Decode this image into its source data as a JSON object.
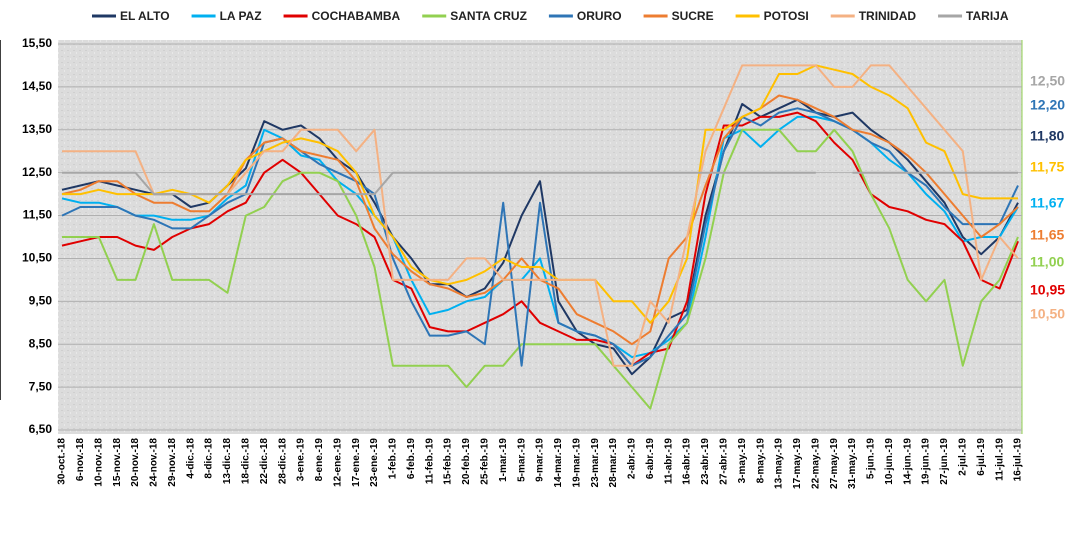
{
  "chart_data": {
    "type": "line",
    "categories": [
      "30-oct.-18",
      "6-nov.-18",
      "10-nov.-18",
      "15-nov.-18",
      "20-nov.-18",
      "24-nov.-18",
      "29-nov.-18",
      "4-dic.-18",
      "8-dic.-18",
      "13-dic.-18",
      "18-dic.-18",
      "22-dic.-18",
      "28-dic.-18",
      "3-ene.-19",
      "8-ene.-19",
      "12-ene.-19",
      "17-ene.-19",
      "23-ene.-19",
      "1-feb.-19",
      "6-feb.-19",
      "11-feb.-19",
      "15-feb.-19",
      "20-feb.-19",
      "25-feb.-19",
      "1-mar.-19",
      "5-mar.-19",
      "9-mar.-19",
      "14-mar.-19",
      "19-mar.-19",
      "23-mar.-19",
      "28-mar.-19",
      "2-abr.-19",
      "6-abr.-19",
      "11-abr.-19",
      "16-abr.-19",
      "23-abr.-19",
      "27-abr.-19",
      "3-may.-19",
      "8-may.-19",
      "13-may.-19",
      "17-may.-19",
      "22-may.-19",
      "27-may.-19",
      "31-may.-19",
      "5-jun.-19",
      "10-jun.-19",
      "14-jun.-19",
      "19-jun.-19",
      "27-jun.-19",
      "2-jul.-19",
      "6-jul.-19",
      "11-jul.-19",
      "16-jul.-19"
    ],
    "ylim": [
      6.5,
      15.5
    ],
    "yticks": [
      {
        "value": 6.5,
        "label": "6,50"
      },
      {
        "value": 7.5,
        "label": "7,50"
      },
      {
        "value": 8.5,
        "label": "8,50"
      },
      {
        "value": 9.5,
        "label": "9,50"
      },
      {
        "value": 10.5,
        "label": "10,50"
      },
      {
        "value": 11.5,
        "label": "11,50"
      },
      {
        "value": 12.5,
        "label": "12,50"
      },
      {
        "value": 13.5,
        "label": "13,50"
      },
      {
        "value": 14.5,
        "label": "14,50"
      },
      {
        "value": 15.5,
        "label": "15,50"
      }
    ],
    "grid": true,
    "series": [
      {
        "name": "EL ALTO",
        "color": "#1f3864",
        "end_label": "11,80",
        "values": [
          12.1,
          12.2,
          12.3,
          12.2,
          12.1,
          12.0,
          12.0,
          11.7,
          11.8,
          12.2,
          12.6,
          13.7,
          13.5,
          13.6,
          13.3,
          12.8,
          12.5,
          11.8,
          11.0,
          10.5,
          9.9,
          9.9,
          9.6,
          9.8,
          10.4,
          11.5,
          12.3,
          9.5,
          8.8,
          8.5,
          8.4,
          7.8,
          8.2,
          9.1,
          9.3,
          11.5,
          13.0,
          14.1,
          13.8,
          14.0,
          14.2,
          13.9,
          13.8,
          13.9,
          13.5,
          13.2,
          12.8,
          12.3,
          11.8,
          11.0,
          10.6,
          11.0,
          11.8
        ]
      },
      {
        "name": "LA PAZ",
        "color": "#00b0f0",
        "end_label": "11,67",
        "values": [
          11.9,
          11.8,
          11.8,
          11.7,
          11.5,
          11.5,
          11.4,
          11.4,
          11.5,
          11.9,
          12.2,
          13.5,
          13.3,
          12.9,
          12.8,
          12.3,
          12.0,
          11.5,
          11.0,
          10.0,
          9.2,
          9.3,
          9.5,
          9.6,
          10.0,
          10.0,
          10.5,
          9.0,
          8.8,
          8.7,
          8.5,
          8.2,
          8.3,
          8.6,
          9.0,
          11.0,
          13.3,
          13.5,
          13.1,
          13.5,
          13.8,
          13.8,
          13.7,
          13.5,
          13.2,
          12.8,
          12.5,
          12.0,
          11.6,
          10.9,
          11.0,
          11.0,
          11.7
        ]
      },
      {
        "name": "COCHABAMBA",
        "color": "#e00000",
        "end_label": "10,95",
        "values": [
          10.8,
          10.9,
          11.0,
          11.0,
          10.8,
          10.7,
          11.0,
          11.2,
          11.3,
          11.6,
          11.8,
          12.5,
          12.8,
          12.5,
          12.0,
          11.5,
          11.3,
          11.0,
          10.0,
          9.8,
          8.9,
          8.8,
          8.8,
          9.0,
          9.2,
          9.5,
          9.0,
          8.8,
          8.6,
          8.6,
          8.5,
          8.0,
          8.3,
          8.4,
          9.5,
          12.0,
          13.6,
          13.6,
          13.8,
          13.8,
          13.9,
          13.7,
          13.2,
          12.8,
          12.0,
          11.7,
          11.6,
          11.4,
          11.3,
          10.9,
          10.0,
          9.8,
          10.9
        ]
      },
      {
        "name": "SANTA CRUZ",
        "color": "#92d050",
        "end_label": "11,00",
        "values": [
          11.0,
          11.0,
          11.0,
          10.0,
          10.0,
          11.3,
          10.0,
          10.0,
          10.0,
          9.7,
          11.5,
          11.7,
          12.3,
          12.5,
          12.5,
          12.3,
          11.5,
          10.3,
          8.0,
          8.0,
          8.0,
          8.0,
          7.5,
          8.0,
          8.0,
          8.5,
          8.5,
          8.5,
          8.5,
          8.5,
          8.0,
          7.5,
          7.0,
          8.5,
          9.0,
          10.5,
          12.5,
          13.5,
          13.5,
          13.5,
          13.0,
          13.0,
          13.5,
          13.0,
          12.0,
          11.2,
          10.0,
          9.5,
          10.0,
          8.0,
          9.5,
          10.0,
          11.0
        ]
      },
      {
        "name": "ORURO",
        "color": "#2e75b6",
        "end_label": "12,20",
        "values": [
          11.5,
          11.7,
          11.7,
          11.7,
          11.5,
          11.4,
          11.2,
          11.2,
          11.5,
          11.8,
          12.0,
          13.2,
          13.3,
          13.0,
          12.7,
          12.5,
          12.3,
          12.0,
          10.5,
          9.5,
          8.7,
          8.7,
          8.8,
          8.5,
          11.8,
          8.0,
          11.8,
          9.0,
          8.8,
          8.7,
          8.5,
          8.0,
          8.2,
          8.7,
          9.2,
          11.3,
          13.0,
          13.8,
          13.6,
          13.9,
          14.0,
          13.9,
          13.7,
          13.5,
          13.2,
          13.0,
          12.5,
          12.2,
          11.7,
          11.3,
          11.3,
          11.3,
          12.2
        ]
      },
      {
        "name": "SUCRE",
        "color": "#ed7d31",
        "end_label": "11,65",
        "values": [
          12.0,
          12.1,
          12.3,
          12.3,
          12.0,
          11.8,
          11.8,
          11.6,
          11.6,
          12.0,
          12.8,
          13.2,
          13.3,
          13.0,
          12.9,
          12.8,
          12.3,
          11.2,
          10.6,
          10.2,
          9.9,
          9.8,
          9.6,
          9.7,
          10.0,
          10.5,
          10.0,
          9.8,
          9.2,
          9.0,
          8.8,
          8.5,
          8.8,
          10.5,
          11.0,
          12.2,
          13.3,
          13.8,
          14.0,
          14.3,
          14.2,
          14.0,
          13.8,
          13.5,
          13.4,
          13.2,
          12.9,
          12.5,
          12.0,
          11.5,
          11.0,
          11.3,
          11.7
        ]
      },
      {
        "name": "POTOSI",
        "color": "#ffc000",
        "end_label": "11,75",
        "values": [
          12.0,
          12.0,
          12.1,
          12.0,
          12.0,
          12.0,
          12.1,
          12.0,
          11.8,
          12.2,
          12.8,
          13.0,
          13.2,
          13.3,
          13.2,
          13.0,
          12.5,
          11.5,
          11.0,
          10.3,
          10.0,
          9.9,
          10.0,
          10.2,
          10.5,
          10.3,
          10.3,
          10.0,
          10.0,
          10.0,
          9.5,
          9.5,
          9.0,
          9.5,
          10.5,
          13.5,
          13.5,
          13.8,
          14.0,
          14.8,
          14.8,
          15.0,
          14.9,
          14.8,
          14.5,
          14.3,
          14.0,
          13.2,
          13.0,
          12.0,
          11.9,
          11.9,
          11.9
        ]
      },
      {
        "name": "TRINIDAD",
        "color": "#f4b183",
        "end_label": "10,50",
        "values": [
          13.0,
          13.0,
          13.0,
          13.0,
          13.0,
          12.0,
          12.0,
          12.0,
          12.0,
          12.0,
          12.5,
          13.0,
          13.0,
          13.5,
          13.5,
          13.5,
          13.0,
          13.5,
          10.0,
          10.0,
          10.0,
          10.0,
          10.5,
          10.5,
          10.0,
          10.0,
          10.0,
          10.0,
          10.0,
          10.0,
          8.0,
          8.0,
          9.5,
          9.0,
          11.0,
          13.0,
          14.0,
          15.0,
          15.0,
          15.0,
          15.0,
          15.0,
          14.5,
          14.5,
          15.0,
          15.0,
          14.5,
          14.0,
          13.5,
          13.0,
          10.0,
          11.0,
          10.5
        ]
      },
      {
        "name": "TARIJA",
        "color": "#a6a6a6",
        "end_label": "12,50",
        "values": [
          12.5,
          12.5,
          12.5,
          12.5,
          12.5,
          12.0,
          12.0,
          12.0,
          12.0,
          12.0,
          12.0,
          12.0,
          12.0,
          12.0,
          12.0,
          12.0,
          12.0,
          12.0,
          12.5,
          12.5,
          12.5,
          12.5,
          12.5,
          12.5,
          12.5,
          12.5,
          12.5,
          12.5,
          12.5,
          12.5,
          12.5,
          12.5,
          12.5,
          12.5,
          12.5,
          12.5,
          12.5,
          12.5,
          12.5,
          12.5,
          12.5,
          12.5,
          null,
          12.5,
          12.5,
          12.5,
          12.5,
          12.5,
          12.5,
          12.5,
          12.5,
          12.5,
          12.5
        ]
      }
    ]
  }
}
